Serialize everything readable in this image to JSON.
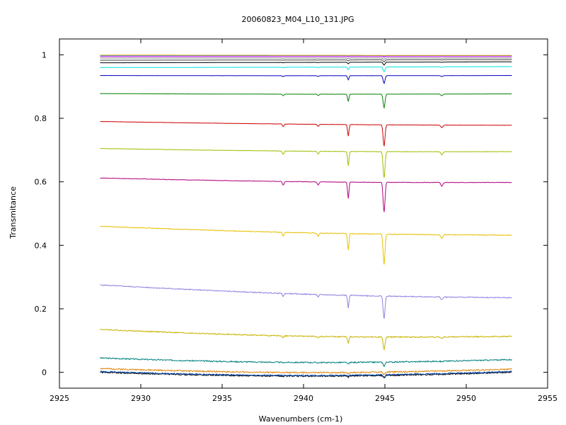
{
  "chart_data": {
    "type": "line",
    "title": "20060823_M04_L10_131.JPG",
    "xlabel": "Wavenumbers (cm-1)",
    "ylabel": "Transmitance",
    "xlim": [
      2925,
      2955
    ],
    "ylim": [
      -0.05,
      1.05
    ],
    "xticks": [
      2925,
      2930,
      2935,
      2940,
      2945,
      2950,
      2955
    ],
    "xtick_labels": [
      "2925",
      "2930",
      "2935",
      "2940",
      "2945",
      "2950",
      "2955"
    ],
    "yticks": [
      0,
      0.2,
      0.4,
      0.6,
      0.8,
      1
    ],
    "ytick_labels": [
      "0",
      "0.2",
      "0.4",
      "0.6",
      "0.8",
      "1"
    ],
    "grid": false,
    "x_range": [
      2927.5,
      2952.8
    ],
    "absorption_lines": [
      {
        "x": 2938.75,
        "width": 0.07,
        "rel_depth": 0.06
      },
      {
        "x": 2940.9,
        "width": 0.07,
        "rel_depth": 0.05
      },
      {
        "x": 2942.75,
        "width": 0.06,
        "rel_depth": 0.27
      },
      {
        "x": 2944.95,
        "width": 0.08,
        "rel_depth": 0.5
      },
      {
        "x": 2948.5,
        "width": 0.09,
        "rel_depth": 0.06
      }
    ],
    "series": [
      {
        "color": "#000000",
        "y_start": 0.0,
        "y_end": 0.0
      },
      {
        "color": "#0044aa",
        "y_start": 0.002,
        "y_end": 0.002
      },
      {
        "color": "#e08000",
        "y_start": 0.012,
        "y_end": 0.01
      },
      {
        "color": "#007f7f",
        "y_start": 0.045,
        "y_end": 0.04
      },
      {
        "color": "#c8b400",
        "y_start": 0.135,
        "y_end": 0.113
      },
      {
        "color": "#9080e0",
        "y_start": 0.275,
        "y_end": 0.235
      },
      {
        "color": "#e8c000",
        "y_start": 0.46,
        "y_end": 0.432
      },
      {
        "color": "#b00080",
        "y_start": 0.612,
        "y_end": 0.598
      },
      {
        "color": "#98c000",
        "y_start": 0.705,
        "y_end": 0.695
      },
      {
        "color": "#cc0000",
        "y_start": 0.79,
        "y_end": 0.778
      },
      {
        "color": "#008000",
        "y_start": 0.878,
        "y_end": 0.877
      },
      {
        "color": "#0000c0",
        "y_start": 0.935,
        "y_end": 0.935
      },
      {
        "color": "#00e0e0",
        "y_start": 0.96,
        "y_end": 0.963
      },
      {
        "color": "#000000",
        "y_start": 0.975,
        "y_end": 0.978
      },
      {
        "color": "#404040",
        "y_start": 0.983,
        "y_end": 0.985
      },
      {
        "color": "#808080",
        "y_start": 0.99,
        "y_end": 0.99
      },
      {
        "color": "#ff00ff",
        "y_start": 0.995,
        "y_end": 0.995
      },
      {
        "color": "#00a0ff",
        "y_start": 0.997,
        "y_end": 0.997
      },
      {
        "color": "#ffa000",
        "y_start": 0.999,
        "y_end": 0.998
      }
    ]
  }
}
